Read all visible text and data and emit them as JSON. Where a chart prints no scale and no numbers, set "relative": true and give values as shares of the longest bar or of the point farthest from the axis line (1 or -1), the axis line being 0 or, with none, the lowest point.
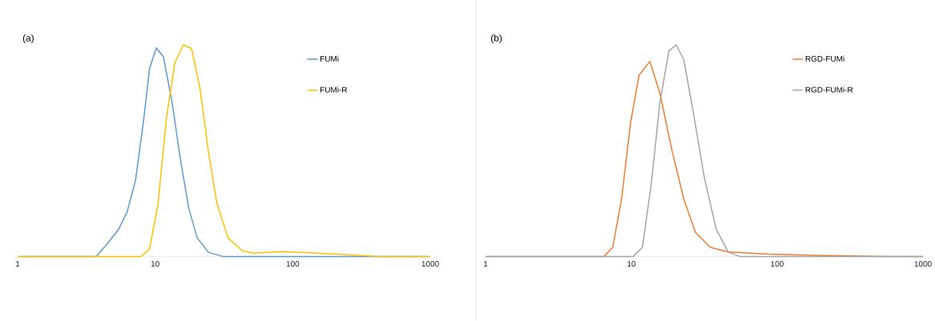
{
  "chart_data": [
    {
      "type": "line",
      "title": "(a)",
      "relative": true,
      "log": "x",
      "xlim": [
        1,
        1000
      ],
      "xticks": [
        1,
        10,
        100,
        1000
      ],
      "grid": false,
      "legend": "top right",
      "marker": "none",
      "line_style": "solid",
      "series": [
        {
          "name": "FUMi",
          "color": "#5b9bd5",
          "x": [
            1,
            3.73,
            4.5,
            5.43,
            6.25,
            7.2,
            8.29,
            9.1,
            10.2,
            11.5,
            13.3,
            15.3,
            17.6,
            20.2,
            24.4,
            30.9,
            1000
          ],
          "values": [
            0,
            0,
            0.061,
            0.129,
            0.21,
            0.36,
            0.657,
            0.888,
            0.986,
            0.942,
            0.725,
            0.454,
            0.224,
            0.088,
            0.02,
            0,
            0
          ]
        },
        {
          "name": "FUMi-R",
          "color": "#ffc000",
          "x": [
            1,
            7.9,
            9.1,
            10.5,
            12.1,
            13.9,
            16.0,
            18.4,
            21.2,
            24.4,
            28.1,
            33.9,
            42.9,
            51.8,
            82.8,
            132,
            268,
            429,
            1000
          ],
          "values": [
            0,
            0,
            0.034,
            0.251,
            0.657,
            0.915,
            1,
            0.982,
            0.793,
            0.495,
            0.251,
            0.088,
            0.027,
            0.016,
            0.023,
            0.018,
            0.007,
            0,
            0
          ]
        }
      ]
    },
    {
      "type": "line",
      "title": "(b)",
      "relative": true,
      "log": "x",
      "xlim": [
        1,
        1000
      ],
      "xticks": [
        1,
        10,
        100,
        1000
      ],
      "grid": false,
      "legend": "top right",
      "marker": "none",
      "line_style": "solid",
      "series": [
        {
          "name": "RGD-FUMi",
          "color": "#ed7d31",
          "x": [
            1,
            6.48,
            7.45,
            8.57,
            9.86,
            11.3,
            13.4,
            15.7,
            19.0,
            22.9,
            27.5,
            34.8,
            46.1,
            88.6,
            225,
            574,
            1000
          ],
          "values": [
            0,
            0,
            0.043,
            0.271,
            0.629,
            0.857,
            0.921,
            0.771,
            0.5,
            0.271,
            0.114,
            0.043,
            0.021,
            0.011,
            0.004,
            0,
            0
          ]
        },
        {
          "name": "RGD-FUMi-R",
          "color": "#a5a5a5",
          "x": [
            1,
            10.3,
            11.9,
            13.7,
            15.7,
            18.1,
            20.3,
            22.9,
            26.3,
            31.7,
            38.2,
            46.1,
            55.5,
            1000
          ],
          "values": [
            0,
            0,
            0.043,
            0.343,
            0.729,
            0.971,
            1,
            0.929,
            0.7,
            0.371,
            0.129,
            0.021,
            0,
            0
          ]
        }
      ]
    }
  ]
}
